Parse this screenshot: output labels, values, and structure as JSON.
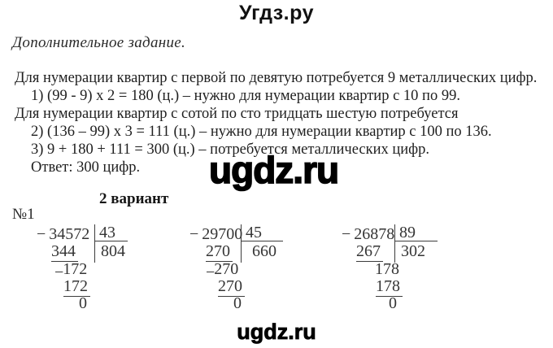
{
  "page": {
    "site_title": "Угдз.ру",
    "watermark_center": "ugdz.ru",
    "watermark_bottom": "ugdz.ru"
  },
  "task": {
    "heading": "Дополнительное задание.",
    "lines": [
      "Для нумерации квартир с первой по девятую потребуется 9 металлических цифр.",
      "1) (99 - 9) х 2 = 180 (ц.) – нужно для нумерации квартир с 10 по 99.",
      "Для нумерации квартир с сотой по сто тридцать шестую потребуется",
      "2) (136 – 99) х 3 = 111 (ц.) – нужно для нумерации квартир с 100 по 136.",
      "3) 9 + 180 + 111 = 300 (ц.) – потребуется металлических цифр.",
      "Ответ: 300 цифр."
    ],
    "variant_heading": "2 вариант",
    "exercise_number": "№1"
  },
  "notation": {
    "minus": "−"
  },
  "divisions": [
    {
      "dividend": "34572",
      "divisor": "43",
      "quotient": "804",
      "sub1": "344",
      "rem1_prefix": "−",
      "rem1": "172",
      "sub2": "172",
      "remainder": "0"
    },
    {
      "dividend": "29700",
      "divisor": "45",
      "quotient": "660",
      "sub1": "270",
      "rem1_prefix": "−",
      "rem1": "270",
      "sub2": "270",
      "remainder": "0"
    },
    {
      "dividend": "26878",
      "divisor": "89",
      "quotient": "302",
      "sub1": "267",
      "rem1_prefix": "",
      "rem1": "178",
      "sub2": "178",
      "remainder": "0"
    }
  ]
}
